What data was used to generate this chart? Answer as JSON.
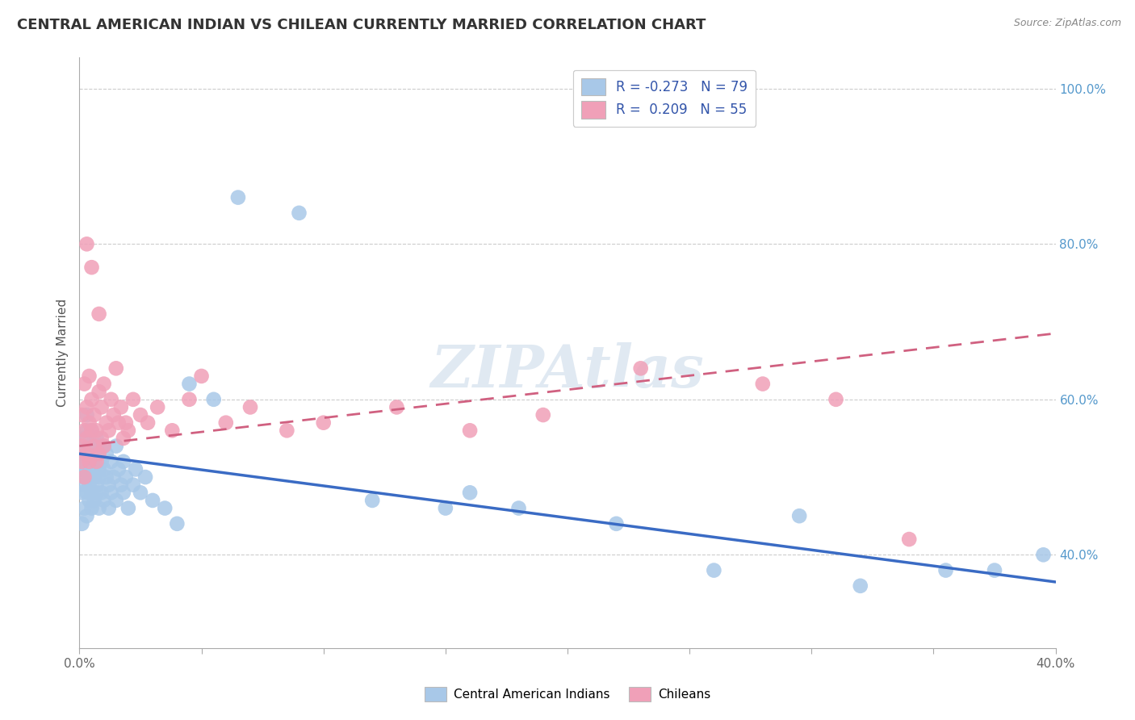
{
  "title": "CENTRAL AMERICAN INDIAN VS CHILEAN CURRENTLY MARRIED CORRELATION CHART",
  "source": "Source: ZipAtlas.com",
  "ylabel": "Currently Married",
  "xlim": [
    0.0,
    0.4
  ],
  "ylim": [
    0.28,
    1.04
  ],
  "xticks": [
    0.0,
    0.05,
    0.1,
    0.15,
    0.2,
    0.25,
    0.3,
    0.35,
    0.4
  ],
  "xtick_labels_show": [
    "0.0%",
    "",
    "",
    "",
    "",
    "",
    "",
    "",
    "40.0%"
  ],
  "yticks": [
    0.4,
    0.6,
    0.8,
    1.0
  ],
  "ytick_labels": [
    "40.0%",
    "60.0%",
    "80.0%",
    "100.0%"
  ],
  "blue_R": -0.273,
  "blue_N": 79,
  "pink_R": 0.209,
  "pink_N": 55,
  "blue_color": "#a8c8e8",
  "pink_color": "#f0a0b8",
  "blue_line_color": "#3a6bc4",
  "pink_line_color": "#d06080",
  "legend_label_blue": "Central American Indians",
  "legend_label_pink": "Chileans",
  "blue_trend_x0": 0.0,
  "blue_trend_y0": 0.53,
  "blue_trend_x1": 0.4,
  "blue_trend_y1": 0.365,
  "pink_trend_x0": 0.0,
  "pink_trend_y0": 0.54,
  "pink_trend_x1": 0.4,
  "pink_trend_y1": 0.685,
  "blue_x": [
    0.001,
    0.001,
    0.001,
    0.001,
    0.002,
    0.002,
    0.002,
    0.002,
    0.002,
    0.003,
    0.003,
    0.003,
    0.003,
    0.003,
    0.003,
    0.004,
    0.004,
    0.004,
    0.004,
    0.004,
    0.005,
    0.005,
    0.005,
    0.005,
    0.005,
    0.006,
    0.006,
    0.006,
    0.006,
    0.007,
    0.007,
    0.007,
    0.007,
    0.008,
    0.008,
    0.008,
    0.008,
    0.009,
    0.009,
    0.01,
    0.01,
    0.01,
    0.011,
    0.011,
    0.012,
    0.012,
    0.013,
    0.013,
    0.014,
    0.015,
    0.015,
    0.016,
    0.017,
    0.018,
    0.018,
    0.019,
    0.02,
    0.022,
    0.023,
    0.025,
    0.027,
    0.03,
    0.035,
    0.04,
    0.045,
    0.055,
    0.065,
    0.09,
    0.12,
    0.15,
    0.18,
    0.22,
    0.26,
    0.295,
    0.32,
    0.355,
    0.375,
    0.395,
    0.16
  ],
  "blue_y": [
    0.48,
    0.51,
    0.44,
    0.53,
    0.5,
    0.46,
    0.55,
    0.52,
    0.49,
    0.53,
    0.48,
    0.56,
    0.51,
    0.45,
    0.58,
    0.52,
    0.49,
    0.47,
    0.54,
    0.5,
    0.53,
    0.48,
    0.56,
    0.51,
    0.46,
    0.54,
    0.5,
    0.47,
    0.52,
    0.55,
    0.49,
    0.53,
    0.48,
    0.51,
    0.46,
    0.54,
    0.5,
    0.52,
    0.48,
    0.51,
    0.47,
    0.54,
    0.5,
    0.53,
    0.49,
    0.46,
    0.52,
    0.48,
    0.5,
    0.54,
    0.47,
    0.51,
    0.49,
    0.52,
    0.48,
    0.5,
    0.46,
    0.49,
    0.51,
    0.48,
    0.5,
    0.47,
    0.46,
    0.44,
    0.62,
    0.6,
    0.86,
    0.84,
    0.47,
    0.46,
    0.46,
    0.44,
    0.38,
    0.45,
    0.36,
    0.38,
    0.38,
    0.4,
    0.48
  ],
  "pink_x": [
    0.001,
    0.001,
    0.001,
    0.002,
    0.002,
    0.002,
    0.003,
    0.003,
    0.003,
    0.004,
    0.004,
    0.004,
    0.005,
    0.005,
    0.006,
    0.006,
    0.007,
    0.007,
    0.008,
    0.008,
    0.009,
    0.009,
    0.01,
    0.01,
    0.011,
    0.012,
    0.013,
    0.014,
    0.015,
    0.016,
    0.017,
    0.018,
    0.019,
    0.02,
    0.022,
    0.025,
    0.028,
    0.032,
    0.038,
    0.045,
    0.05,
    0.06,
    0.07,
    0.085,
    0.1,
    0.13,
    0.16,
    0.19,
    0.23,
    0.28,
    0.31,
    0.34,
    0.003,
    0.005,
    0.008
  ],
  "pink_y": [
    0.54,
    0.58,
    0.52,
    0.56,
    0.62,
    0.5,
    0.55,
    0.59,
    0.53,
    0.57,
    0.63,
    0.52,
    0.56,
    0.6,
    0.54,
    0.58,
    0.52,
    0.56,
    0.53,
    0.61,
    0.55,
    0.59,
    0.54,
    0.62,
    0.57,
    0.56,
    0.6,
    0.58,
    0.64,
    0.57,
    0.59,
    0.55,
    0.57,
    0.56,
    0.6,
    0.58,
    0.57,
    0.59,
    0.56,
    0.6,
    0.63,
    0.57,
    0.59,
    0.56,
    0.57,
    0.59,
    0.56,
    0.58,
    0.64,
    0.62,
    0.6,
    0.42,
    0.8,
    0.77,
    0.71
  ]
}
